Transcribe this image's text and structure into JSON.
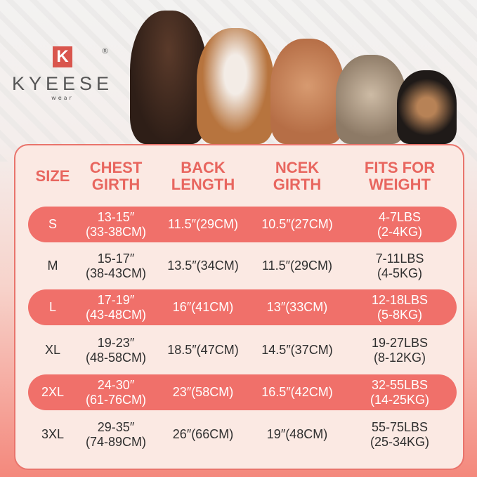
{
  "brand": {
    "logo_letter": "K",
    "name": "KYEESE",
    "sub": "wear",
    "reg": "®"
  },
  "colors": {
    "accent": "#f0706a",
    "header_text": "#e8665f",
    "panel": "#fbe9e3"
  },
  "table": {
    "headers": [
      "SIZE",
      "CHEST\nGIRTH",
      "BACK\nLENGTH",
      "NCEK\nGIRTH",
      "FITS FOR\nWEIGHT"
    ],
    "rows": [
      {
        "size": "S",
        "chest": "13-15″\n(33-38CM)",
        "back": "11.5″(29CM)",
        "neck": "10.5″(27CM)",
        "weight": "4-7LBS\n(2-4KG)"
      },
      {
        "size": "M",
        "chest": "15-17″\n(38-43CM)",
        "back": "13.5″(34CM)",
        "neck": "11.5″(29CM)",
        "weight": "7-11LBS\n(4-5KG)"
      },
      {
        "size": "L",
        "chest": "17-19″\n(43-48CM)",
        "back": "16″(41CM)",
        "neck": "13″(33CM)",
        "weight": "12-18LBS\n(5-8KG)"
      },
      {
        "size": "XL",
        "chest": "19-23″\n(48-58CM)",
        "back": "18.5″(47CM)",
        "neck": "14.5″(37CM)",
        "weight": "19-27LBS\n(8-12KG)"
      },
      {
        "size": "2XL",
        "chest": "24-30″\n(61-76CM)",
        "back": "23″(58CM)",
        "neck": "16.5″(42CM)",
        "weight": "32-55LBS\n(14-25KG)"
      },
      {
        "size": "3XL",
        "chest": "29-35″\n(74-89CM)",
        "back": "26″(66CM)",
        "neck": "19″(48CM)",
        "weight": "55-75LBS\n(25-34KG)"
      }
    ]
  }
}
